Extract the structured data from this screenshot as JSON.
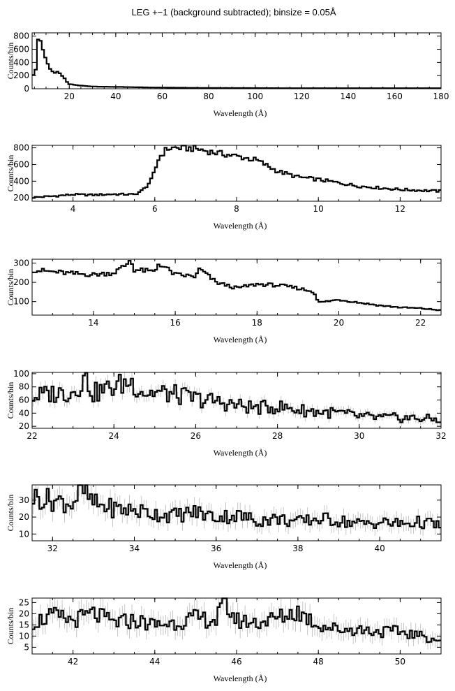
{
  "figure_title": "LEG +−1 (background subtracted); binsize = 0.05Å",
  "chart_data": [
    {
      "type": "line",
      "xlabel": "Wavelength (Å)",
      "ylabel": "Counts/bin",
      "xlim": [
        4,
        180
      ],
      "ylim": [
        0,
        850
      ],
      "xticks": [
        20,
        40,
        60,
        80,
        100,
        120,
        140,
        160,
        180
      ],
      "yticks": [
        0,
        200,
        400,
        600,
        800
      ],
      "error_bars": false,
      "x": [
        4,
        5,
        6,
        6.5,
        7,
        8,
        9,
        10,
        11,
        12,
        13,
        14,
        15,
        16,
        17,
        18,
        19,
        20,
        22,
        24,
        26,
        28,
        30,
        35,
        40,
        45,
        50,
        60,
        70,
        80,
        100,
        120,
        140,
        160,
        180
      ],
      "y": [
        200,
        240,
        310,
        780,
        800,
        680,
        560,
        440,
        350,
        300,
        260,
        235,
        250,
        225,
        200,
        150,
        100,
        70,
        60,
        50,
        45,
        38,
        35,
        30,
        28,
        25,
        22,
        18,
        15,
        12,
        10,
        8,
        7,
        6,
        5
      ]
    },
    {
      "type": "line",
      "xlabel": "Wavelength (Å)",
      "ylabel": "Counts/bin",
      "xlim": [
        3,
        13
      ],
      "ylim": [
        160,
        830
      ],
      "xticks": [
        4,
        6,
        8,
        10,
        12
      ],
      "yticks": [
        200,
        400,
        600,
        800
      ],
      "error_bars": false,
      "x": [
        3,
        3.5,
        4,
        4.5,
        5,
        5.5,
        5.7,
        5.9,
        6.0,
        6.1,
        6.3,
        6.5,
        7.0,
        7.5,
        8.0,
        8.5,
        9.0,
        9.5,
        10.0,
        10.5,
        11.0,
        11.5,
        12.0,
        12.5,
        13.0
      ],
      "y": [
        205,
        220,
        240,
        235,
        245,
        240,
        290,
        400,
        520,
        680,
        790,
        800,
        790,
        740,
        700,
        650,
        520,
        450,
        420,
        380,
        340,
        320,
        300,
        290,
        280
      ]
    },
    {
      "type": "line",
      "xlabel": "Wavelength (Å)",
      "ylabel": "Counts/bin",
      "xlim": [
        12.5,
        22.5
      ],
      "ylim": [
        30,
        320
      ],
      "xticks": [
        14,
        16,
        18,
        20,
        22
      ],
      "yticks": [
        100,
        200,
        300
      ],
      "error_bars": false,
      "x": [
        12.5,
        13.0,
        13.5,
        14.0,
        14.5,
        14.8,
        14.9,
        15.0,
        15.5,
        15.6,
        16.0,
        16.5,
        16.6,
        17.0,
        17.5,
        18.0,
        18.5,
        19.0,
        19.4,
        19.5,
        20.0,
        20.5,
        21.0,
        21.5,
        22.0,
        22.5
      ],
      "y": [
        265,
        255,
        245,
        240,
        250,
        290,
        320,
        265,
        255,
        300,
        240,
        230,
        270,
        200,
        170,
        190,
        185,
        170,
        150,
        95,
        110,
        95,
        80,
        70,
        65,
        55
      ]
    },
    {
      "type": "line",
      "xlabel": "Wavelength (Å)",
      "ylabel": "Counts/bin",
      "xlim": [
        22,
        32
      ],
      "ylim": [
        17,
        102
      ],
      "xticks": [
        22,
        24,
        26,
        28,
        30,
        32
      ],
      "yticks": [
        20,
        40,
        60,
        80,
        100
      ],
      "error_bars": true,
      "x": [
        22.0,
        22.5,
        23.0,
        23.3,
        23.5,
        24.0,
        24.4,
        24.8,
        25.0,
        25.5,
        26.0,
        26.5,
        27.0,
        27.5,
        28.0,
        28.5,
        29.0,
        29.5,
        30.0,
        30.5,
        31.0,
        31.5,
        32.0
      ],
      "y": [
        65,
        70,
        72,
        95,
        70,
        80,
        88,
        70,
        72,
        68,
        62,
        58,
        52,
        48,
        50,
        45,
        42,
        40,
        35,
        33,
        33,
        32,
        30
      ]
    },
    {
      "type": "line",
      "xlabel": "Wavelength (Å)",
      "ylabel": "Counts/bin",
      "xlim": [
        31.5,
        41.5
      ],
      "ylim": [
        6,
        39
      ],
      "xticks": [
        32,
        34,
        36,
        38,
        40
      ],
      "yticks": [
        10,
        20,
        30
      ],
      "error_bars": true,
      "x": [
        31.5,
        32.0,
        32.5,
        32.7,
        33.0,
        33.5,
        34.0,
        34.5,
        35.0,
        35.5,
        36.0,
        36.5,
        37.0,
        37.5,
        38.0,
        38.5,
        39.0,
        39.5,
        40.0,
        40.5,
        41.0,
        41.5
      ],
      "y": [
        32,
        30,
        28,
        37,
        28,
        25,
        24,
        22,
        21,
        23,
        20,
        21,
        18,
        19,
        17,
        19,
        18,
        16,
        17,
        16,
        17,
        15
      ]
    },
    {
      "type": "line",
      "xlabel": "Wavelength (Å)",
      "ylabel": "Counts/bin",
      "xlim": [
        41,
        51
      ],
      "ylim": [
        2,
        27
      ],
      "xticks": [
        42,
        44,
        46,
        48,
        50
      ],
      "yticks": [
        5,
        10,
        15,
        20,
        25
      ],
      "error_bars": true,
      "x": [
        41.0,
        41.5,
        42.0,
        42.5,
        43.0,
        43.5,
        44.0,
        44.5,
        45.0,
        45.5,
        45.7,
        46.0,
        46.5,
        47.0,
        47.5,
        48.0,
        48.5,
        49.0,
        49.5,
        50.0,
        50.5,
        51.0
      ],
      "y": [
        16,
        19,
        17,
        20,
        16,
        17,
        15,
        16,
        18,
        17,
        25,
        17,
        16,
        18,
        21,
        15,
        13,
        13,
        12,
        12,
        10,
        8
      ]
    }
  ]
}
